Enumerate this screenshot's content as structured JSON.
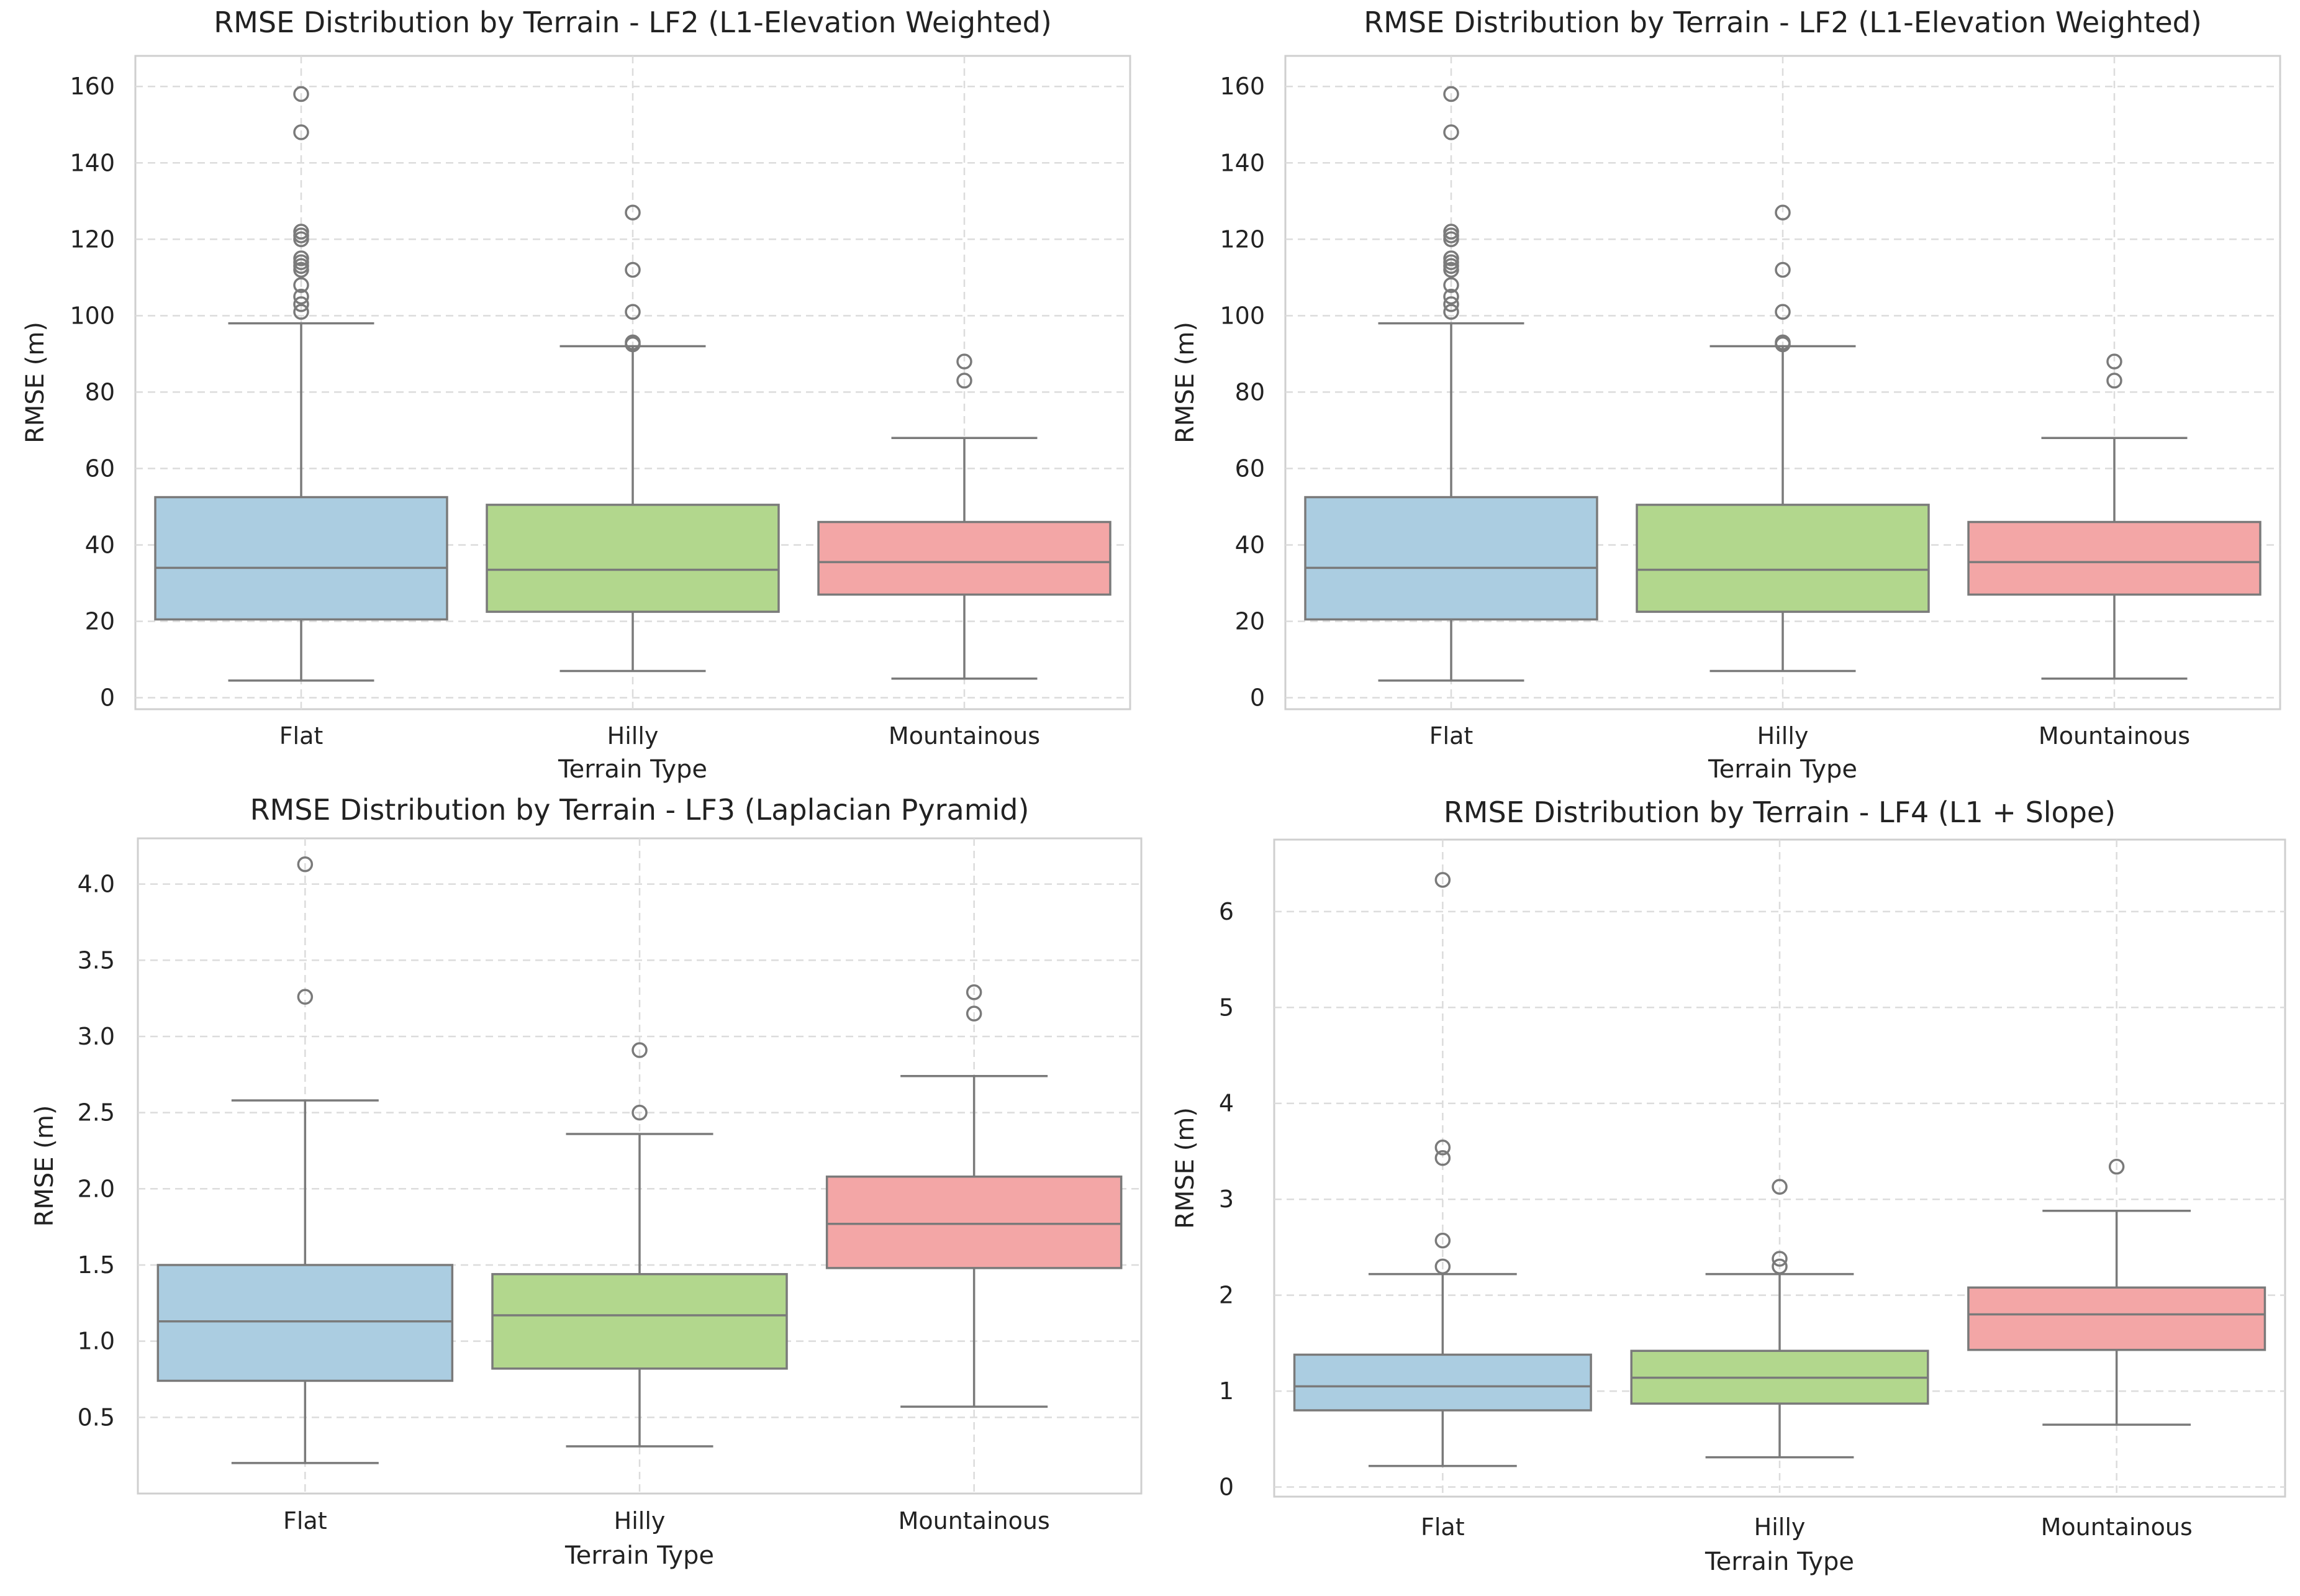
{
  "chart_data": [
    {
      "type": "box",
      "title": "RMSE Distribution by Terrain - LF2 (L1-Elevation Weighted)",
      "xlabel": "Terrain Type",
      "ylabel": "RMSE (m)",
      "ylim": [
        -3,
        168
      ],
      "yticks": [
        0,
        20,
        40,
        60,
        80,
        100,
        120,
        140,
        160
      ],
      "ytick_labels": [
        "0",
        "20",
        "40",
        "60",
        "80",
        "100",
        "120",
        "140",
        "160"
      ],
      "categories": [
        "Flat",
        "Hilly",
        "Mountainous"
      ],
      "colors": [
        "#abcde1",
        "#b2d78d",
        "#f3a6a6"
      ],
      "boxes": [
        {
          "whisker_low": 4.5,
          "q1": 20.5,
          "median": 34,
          "q3": 52.5,
          "whisker_high": 98,
          "outliers": [
            101,
            103,
            105,
            108,
            112,
            113,
            114,
            115,
            120,
            121,
            122,
            148,
            158
          ]
        },
        {
          "whisker_low": 7,
          "q1": 22.5,
          "median": 33.5,
          "q3": 50.5,
          "whisker_high": 92,
          "outliers": [
            92.5,
            93,
            101,
            112,
            127
          ]
        },
        {
          "whisker_low": 5,
          "q1": 27,
          "median": 35.5,
          "q3": 46,
          "whisker_high": 68,
          "outliers": [
            83,
            88
          ]
        }
      ]
    },
    {
      "type": "box",
      "title": "RMSE Distribution by Terrain - LF2 (L1-Elevation Weighted)",
      "xlabel": "Terrain Type",
      "ylabel": "RMSE (m)",
      "ylim": [
        -3,
        168
      ],
      "yticks": [
        0,
        20,
        40,
        60,
        80,
        100,
        120,
        140,
        160
      ],
      "ytick_labels": [
        "0",
        "20",
        "40",
        "60",
        "80",
        "100",
        "120",
        "140",
        "160"
      ],
      "categories": [
        "Flat",
        "Hilly",
        "Mountainous"
      ],
      "colors": [
        "#abcde1",
        "#b2d78d",
        "#f3a6a6"
      ],
      "boxes": [
        {
          "whisker_low": 4.5,
          "q1": 20.5,
          "median": 34,
          "q3": 52.5,
          "whisker_high": 98,
          "outliers": [
            101,
            103,
            105,
            108,
            112,
            113,
            114,
            115,
            120,
            121,
            122,
            148,
            158
          ]
        },
        {
          "whisker_low": 7,
          "q1": 22.5,
          "median": 33.5,
          "q3": 50.5,
          "whisker_high": 92,
          "outliers": [
            92.5,
            93,
            101,
            112,
            127
          ]
        },
        {
          "whisker_low": 5,
          "q1": 27,
          "median": 35.5,
          "q3": 46,
          "whisker_high": 68,
          "outliers": [
            83,
            88
          ]
        }
      ]
    },
    {
      "type": "box",
      "title": "RMSE Distribution by Terrain - LF3 (Laplacian Pyramid)",
      "xlabel": "Terrain Type",
      "ylabel": "RMSE (m)",
      "ylim": [
        0.0,
        4.3
      ],
      "yticks": [
        0.5,
        1.0,
        1.5,
        2.0,
        2.5,
        3.0,
        3.5,
        4.0
      ],
      "ytick_labels": [
        "0.5",
        "1.0",
        "1.5",
        "2.0",
        "2.5",
        "3.0",
        "3.5",
        "4.0"
      ],
      "categories": [
        "Flat",
        "Hilly",
        "Mountainous"
      ],
      "colors": [
        "#abcde1",
        "#b2d78d",
        "#f3a6a6"
      ],
      "boxes": [
        {
          "whisker_low": 0.2,
          "q1": 0.74,
          "median": 1.13,
          "q3": 1.5,
          "whisker_high": 2.58,
          "outliers": [
            3.26,
            4.13
          ]
        },
        {
          "whisker_low": 0.31,
          "q1": 0.82,
          "median": 1.17,
          "q3": 1.44,
          "whisker_high": 2.36,
          "outliers": [
            2.5,
            2.91
          ]
        },
        {
          "whisker_low": 0.57,
          "q1": 1.48,
          "median": 1.77,
          "q3": 2.08,
          "whisker_high": 2.74,
          "outliers": [
            3.15,
            3.29
          ]
        }
      ]
    },
    {
      "type": "box",
      "title": "RMSE Distribution by Terrain - LF4 (L1 + Slope)",
      "xlabel": "Terrain Type",
      "ylabel": "RMSE (m)",
      "ylim": [
        -0.1,
        6.75
      ],
      "yticks": [
        0,
        1,
        2,
        3,
        4,
        5,
        6
      ],
      "ytick_labels": [
        "0",
        "1",
        "2",
        "3",
        "4",
        "5",
        "6"
      ],
      "categories": [
        "Flat",
        "Hilly",
        "Mountainous"
      ],
      "colors": [
        "#abcde1",
        "#b2d78d",
        "#f3a6a6"
      ],
      "boxes": [
        {
          "whisker_low": 0.22,
          "q1": 0.8,
          "median": 1.05,
          "q3": 1.38,
          "whisker_high": 2.22,
          "outliers": [
            2.3,
            2.57,
            3.43,
            3.54,
            6.33
          ]
        },
        {
          "whisker_low": 0.31,
          "q1": 0.87,
          "median": 1.14,
          "q3": 1.42,
          "whisker_high": 2.22,
          "outliers": [
            2.3,
            2.38,
            3.13
          ]
        },
        {
          "whisker_low": 0.65,
          "q1": 1.43,
          "median": 1.8,
          "q3": 2.08,
          "whisker_high": 2.88,
          "outliers": [
            3.34
          ]
        }
      ]
    }
  ]
}
